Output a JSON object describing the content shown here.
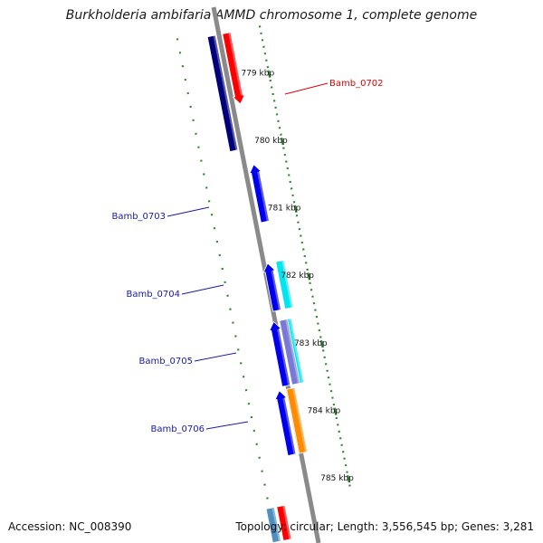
{
  "title": "Burkholderia ambifaria AMMD chromosome 1, complete genome",
  "accession": "Accession: NC_008390",
  "summary": "Topology: circular; Length: 3,556,545 bp; Genes: 3,281",
  "colors": {
    "backbone": "#8a8a8a",
    "ticks": "#2e8b2e",
    "label_red": "#e00000",
    "label_blue": "#1a1aa8"
  },
  "kbp_labels": [
    {
      "kbp": 779,
      "text": "779 kbp"
    },
    {
      "kbp": 780,
      "text": "780 kbp"
    },
    {
      "kbp": 781,
      "text": "781 kbp"
    },
    {
      "kbp": 782,
      "text": "782 kbp"
    },
    {
      "kbp": 783,
      "text": "783 kbp"
    },
    {
      "kbp": 784,
      "text": "784 kbp"
    },
    {
      "kbp": 785,
      "text": "785 kbp"
    }
  ],
  "gene_labels": [
    {
      "text": "Bamb_0702",
      "color": "#e00000"
    },
    {
      "text": "Bamb_0703",
      "color": "#1a1aa8"
    },
    {
      "text": "Bamb_0704",
      "color": "#1a1aa8"
    },
    {
      "text": "Bamb_0705",
      "color": "#1a1aa8"
    },
    {
      "text": "Bamb_0706",
      "color": "#1a1aa8"
    }
  ],
  "features": [
    {
      "lane": -1,
      "start": 778.3,
      "end": 779.35,
      "color": "#ff0000",
      "arrow": "down"
    },
    {
      "lane": 1,
      "start": 778.3,
      "end": 780.0,
      "color": "#00007a",
      "arrow": "none"
    },
    {
      "lane": -1.2,
      "start": 780.25,
      "end": 781.1,
      "color": "#0000ee",
      "arrow": "up"
    },
    {
      "lane": -2.1,
      "start": 781.7,
      "end": 782.4,
      "color": "#00e5f0",
      "arrow": "none"
    },
    {
      "lane": -0.5,
      "start": 781.7,
      "end": 782.4,
      "color": "#0000ee",
      "arrow": "up"
    },
    {
      "lane": -1.6,
      "start": 782.55,
      "end": 783.5,
      "color": "#00e5f0",
      "arrow": "none"
    },
    {
      "lane": -1.1,
      "start": 782.55,
      "end": 783.5,
      "color": "#7a7ad6",
      "arrow": "none"
    },
    {
      "lane": 0.2,
      "start": 782.55,
      "end": 783.5,
      "color": "#0000ee",
      "arrow": "up"
    },
    {
      "lane": -0.3,
      "start": 783.55,
      "end": 784.5,
      "color": "#ff8c00",
      "arrow": "none"
    },
    {
      "lane": 1.2,
      "start": 783.55,
      "end": 784.5,
      "color": "#0000ee",
      "arrow": "up"
    },
    {
      "lane": 3.9,
      "start": 785.2,
      "end": 785.7,
      "color": "#ff0000",
      "arrow": "none"
    },
    {
      "lane": 5.3,
      "start": 785.2,
      "end": 785.7,
      "color": "#4f8fc0",
      "arrow": "none"
    }
  ]
}
